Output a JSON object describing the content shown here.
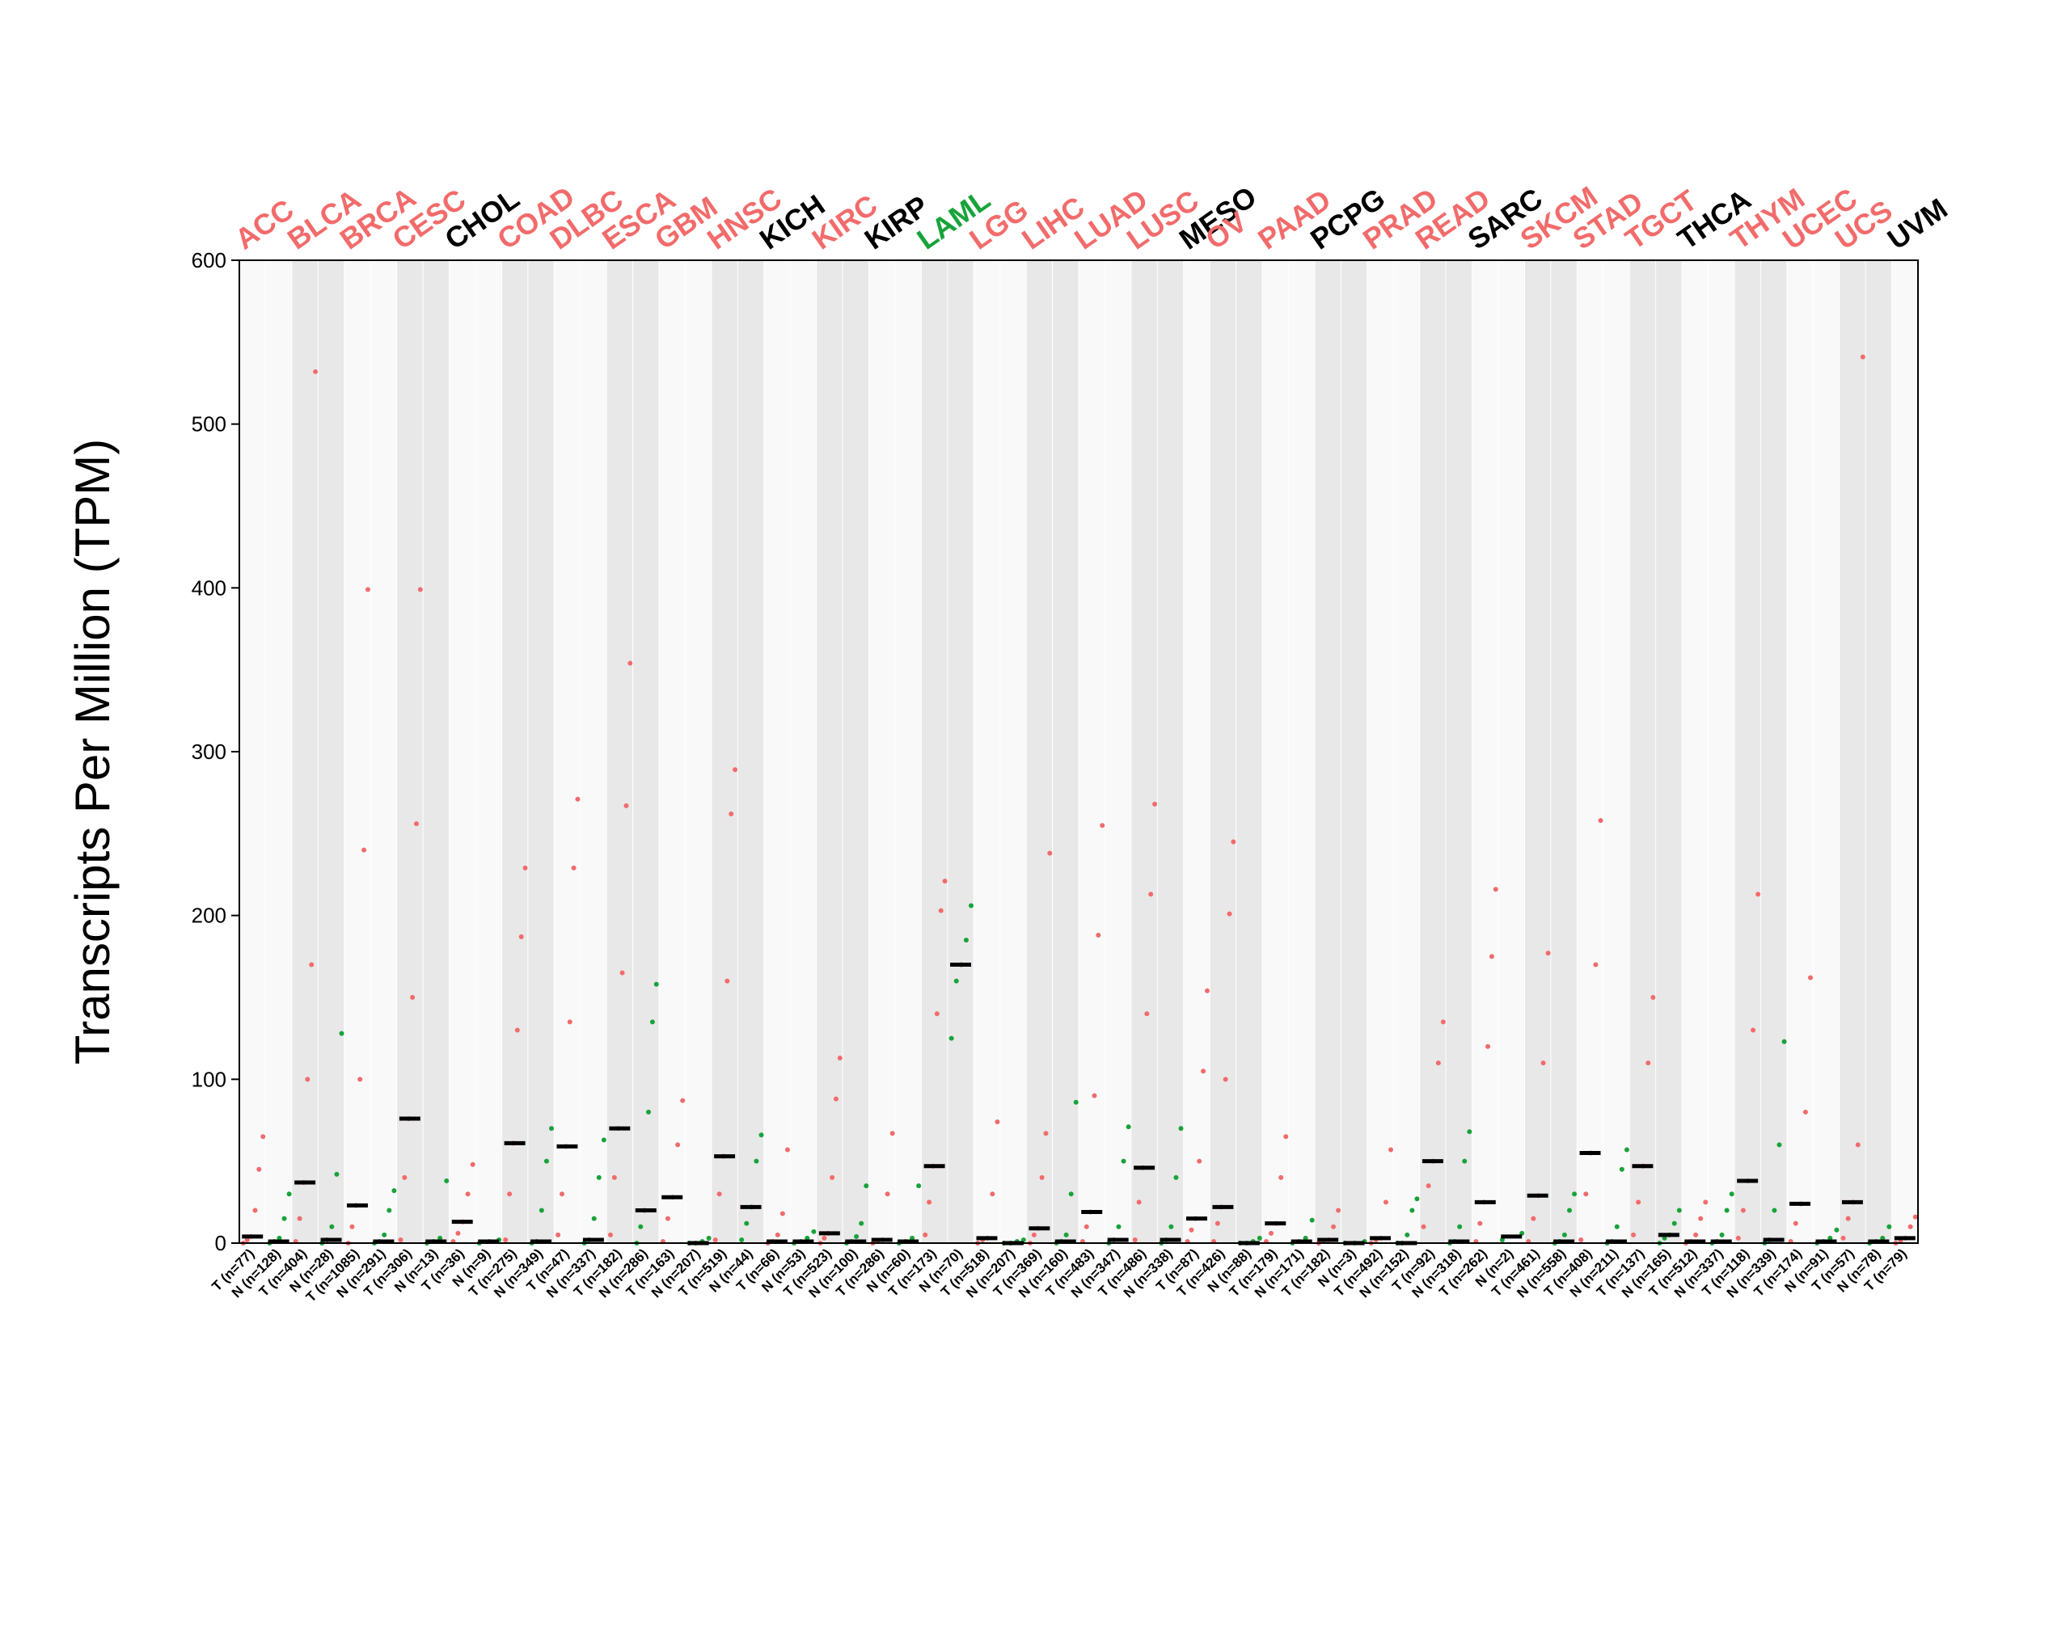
{
  "chart_data": {
    "type": "dot",
    "y_label": "Transcripts Per Million (TPM)",
    "ylim": [
      0,
      600
    ],
    "yticks": [
      0,
      100,
      200,
      300,
      400,
      500,
      600
    ],
    "median_color": "#000000",
    "cancers": [
      {
        "name": "ACC",
        "color": "#f26b6b",
        "groups": [
          {
            "label": "T (n=77)",
            "color": "#f26b6b",
            "median": 4,
            "values": [
              0,
              2,
              4,
              20,
              45,
              65
            ]
          },
          {
            "label": "N (n=128)",
            "color": "#18a33a",
            "median": 1,
            "values": [
              0,
              1,
              3,
              15,
              30
            ]
          }
        ]
      },
      {
        "name": "BLCA",
        "color": "#f26b6b",
        "groups": [
          {
            "label": "T (n=404)",
            "color": "#f26b6b",
            "median": 37,
            "values": [
              1,
              15,
              37,
              100,
              170,
              532
            ]
          },
          {
            "label": "N (n=28)",
            "color": "#18a33a",
            "median": 2,
            "values": [
              0,
              2,
              10,
              42,
              128
            ]
          }
        ]
      },
      {
        "name": "BRCA",
        "color": "#f26b6b",
        "groups": [
          {
            "label": "T (n=1085)",
            "color": "#f26b6b",
            "median": 23,
            "values": [
              0,
              10,
              23,
              100,
              240,
              399
            ]
          },
          {
            "label": "N (n=291)",
            "color": "#18a33a",
            "median": 1,
            "values": [
              0,
              1,
              5,
              20,
              32
            ]
          }
        ]
      },
      {
        "name": "CESC",
        "color": "#f26b6b",
        "groups": [
          {
            "label": "T (n=306)",
            "color": "#f26b6b",
            "median": 76,
            "values": [
              2,
              40,
              76,
              150,
              256,
              399
            ]
          },
          {
            "label": "N (n=13)",
            "color": "#18a33a",
            "median": 1,
            "values": [
              0,
              1,
              3,
              38
            ]
          }
        ]
      },
      {
        "name": "CHOL",
        "color": "#000000",
        "groups": [
          {
            "label": "T (n=36)",
            "color": "#f26b6b",
            "median": 13,
            "values": [
              1,
              6,
              13,
              30,
              48
            ]
          },
          {
            "label": "N (n=9)",
            "color": "#18a33a",
            "median": 1,
            "values": [
              0,
              1,
              2
            ]
          }
        ]
      },
      {
        "name": "COAD",
        "color": "#f26b6b",
        "groups": [
          {
            "label": "T (n=275)",
            "color": "#f26b6b",
            "median": 61,
            "values": [
              2,
              30,
              61,
              130,
              187,
              229
            ]
          },
          {
            "label": "N (n=349)",
            "color": "#18a33a",
            "median": 1,
            "values": [
              0,
              1,
              20,
              50,
              70
            ]
          }
        ]
      },
      {
        "name": "DLBC",
        "color": "#f26b6b",
        "groups": [
          {
            "label": "T (n=47)",
            "color": "#f26b6b",
            "median": 59,
            "values": [
              5,
              30,
              59,
              135,
              229,
              271
            ]
          },
          {
            "label": "N (n=337)",
            "color": "#18a33a",
            "median": 2,
            "values": [
              0,
              2,
              15,
              40,
              63
            ]
          }
        ]
      },
      {
        "name": "ESCA",
        "color": "#f26b6b",
        "groups": [
          {
            "label": "T (n=182)",
            "color": "#f26b6b",
            "median": 70,
            "values": [
              5,
              40,
              70,
              165,
              267,
              354
            ]
          },
          {
            "label": "N (n=286)",
            "color": "#18a33a",
            "median": 20,
            "values": [
              0,
              10,
              20,
              80,
              135,
              158
            ]
          }
        ]
      },
      {
        "name": "GBM",
        "color": "#f26b6b",
        "groups": [
          {
            "label": "T (n=163)",
            "color": "#f26b6b",
            "median": 28,
            "values": [
              1,
              15,
              28,
              60,
              87
            ]
          },
          {
            "label": "N (n=207)",
            "color": "#18a33a",
            "median": 0,
            "values": [
              0,
              0,
              1,
              3
            ]
          }
        ]
      },
      {
        "name": "HNSC",
        "color": "#f26b6b",
        "groups": [
          {
            "label": "T (n=519)",
            "color": "#f26b6b",
            "median": 53,
            "values": [
              2,
              30,
              53,
              160,
              262,
              289
            ]
          },
          {
            "label": "N (n=44)",
            "color": "#18a33a",
            "median": 22,
            "values": [
              2,
              12,
              22,
              50,
              66
            ]
          }
        ]
      },
      {
        "name": "KICH",
        "color": "#000000",
        "groups": [
          {
            "label": "T (n=66)",
            "color": "#f26b6b",
            "median": 1,
            "values": [
              0,
              1,
              5,
              18,
              57
            ]
          },
          {
            "label": "N (n=53)",
            "color": "#18a33a",
            "median": 1,
            "values": [
              0,
              1,
              3,
              7
            ]
          }
        ]
      },
      {
        "name": "KIRC",
        "color": "#f26b6b",
        "groups": [
          {
            "label": "T (n=523)",
            "color": "#f26b6b",
            "median": 6,
            "values": [
              0,
              3,
              6,
              40,
              88,
              113
            ]
          },
          {
            "label": "N (n=100)",
            "color": "#18a33a",
            "median": 1,
            "values": [
              0,
              1,
              4,
              12,
              35
            ]
          }
        ]
      },
      {
        "name": "KIRP",
        "color": "#000000",
        "groups": [
          {
            "label": "T (n=286)",
            "color": "#f26b6b",
            "median": 2,
            "values": [
              0,
              1,
              2,
              30,
              67
            ]
          },
          {
            "label": "N (n=60)",
            "color": "#18a33a",
            "median": 1,
            "values": [
              0,
              1,
              3,
              35
            ]
          }
        ]
      },
      {
        "name": "LAML",
        "color": "#18a33a",
        "groups": [
          {
            "label": "T (n=173)",
            "color": "#f26b6b",
            "median": 47,
            "values": [
              5,
              25,
              47,
              140,
              203,
              221
            ]
          },
          {
            "label": "N (n=70)",
            "color": "#18a33a",
            "median": 170,
            "values": [
              125,
              160,
              170,
              185,
              206
            ]
          }
        ]
      },
      {
        "name": "LGG",
        "color": "#f26b6b",
        "groups": [
          {
            "label": "T (n=518)",
            "color": "#f26b6b",
            "median": 3,
            "values": [
              0,
              2,
              3,
              30,
              74
            ]
          },
          {
            "label": "N (n=207)",
            "color": "#18a33a",
            "median": 0,
            "values": [
              0,
              0,
              1,
              2
            ]
          }
        ]
      },
      {
        "name": "LIHC",
        "color": "#f26b6b",
        "groups": [
          {
            "label": "T (n=369)",
            "color": "#f26b6b",
            "median": 9,
            "values": [
              0,
              5,
              9,
              40,
              67,
              238
            ]
          },
          {
            "label": "N (n=160)",
            "color": "#18a33a",
            "median": 1,
            "values": [
              0,
              1,
              5,
              30,
              86
            ]
          }
        ]
      },
      {
        "name": "LUAD",
        "color": "#f26b6b",
        "groups": [
          {
            "label": "T (n=483)",
            "color": "#f26b6b",
            "median": 19,
            "values": [
              1,
              10,
              19,
              90,
              188,
              255
            ]
          },
          {
            "label": "N (n=347)",
            "color": "#18a33a",
            "median": 2,
            "values": [
              0,
              2,
              10,
              50,
              71
            ]
          }
        ]
      },
      {
        "name": "LUSC",
        "color": "#f26b6b",
        "groups": [
          {
            "label": "T (n=486)",
            "color": "#f26b6b",
            "median": 46,
            "values": [
              2,
              25,
              46,
              140,
              213,
              268
            ]
          },
          {
            "label": "N (n=338)",
            "color": "#18a33a",
            "median": 2,
            "values": [
              0,
              2,
              10,
              40,
              70
            ]
          }
        ]
      },
      {
        "name": "MESO",
        "color": "#000000",
        "groups": [
          {
            "label": "T (n=87)",
            "color": "#f26b6b",
            "median": 15,
            "values": [
              1,
              8,
              15,
              50,
              105,
              154
            ]
          }
        ]
      },
      {
        "name": "OV",
        "color": "#f26b6b",
        "groups": [
          {
            "label": "T (n=426)",
            "color": "#f26b6b",
            "median": 22,
            "values": [
              1,
              12,
              22,
              100,
              201,
              245
            ]
          },
          {
            "label": "N (n=88)",
            "color": "#18a33a",
            "median": 0,
            "values": [
              0,
              0,
              1,
              3
            ]
          }
        ]
      },
      {
        "name": "PAAD",
        "color": "#f26b6b",
        "groups": [
          {
            "label": "T (n=179)",
            "color": "#f26b6b",
            "median": 12,
            "values": [
              1,
              6,
              12,
              40,
              65
            ]
          },
          {
            "label": "N (n=171)",
            "color": "#18a33a",
            "median": 1,
            "values": [
              0,
              1,
              3,
              14
            ]
          }
        ]
      },
      {
        "name": "PCPG",
        "color": "#000000",
        "groups": [
          {
            "label": "T (n=182)",
            "color": "#f26b6b",
            "median": 2,
            "values": [
              0,
              1,
              2,
              10,
              20
            ]
          },
          {
            "label": "N (n=3)",
            "color": "#18a33a",
            "median": 0,
            "values": [
              0,
              0,
              1
            ]
          }
        ]
      },
      {
        "name": "PRAD",
        "color": "#f26b6b",
        "groups": [
          {
            "label": "T (n=492)",
            "color": "#f26b6b",
            "median": 3,
            "values": [
              0,
              2,
              3,
              25,
              57
            ]
          },
          {
            "label": "N (n=152)",
            "color": "#18a33a",
            "median": 0,
            "values": [
              0,
              0,
              5,
              20,
              27
            ]
          }
        ]
      },
      {
        "name": "READ",
        "color": "#f26b6b",
        "groups": [
          {
            "label": "T (n=92)",
            "color": "#f26b6b",
            "median": 50,
            "values": [
              10,
              35,
              50,
              110,
              135
            ]
          },
          {
            "label": "N (n=318)",
            "color": "#18a33a",
            "median": 1,
            "values": [
              0,
              1,
              10,
              50,
              68
            ]
          }
        ]
      },
      {
        "name": "SARC",
        "color": "#000000",
        "groups": [
          {
            "label": "T (n=262)",
            "color": "#f26b6b",
            "median": 25,
            "values": [
              1,
              12,
              25,
              120,
              175,
              216
            ]
          },
          {
            "label": "N (n=2)",
            "color": "#18a33a",
            "median": 4,
            "values": [
              2,
              6
            ]
          }
        ]
      },
      {
        "name": "SKCM",
        "color": "#f26b6b",
        "groups": [
          {
            "label": "T (n=461)",
            "color": "#f26b6b",
            "median": 29,
            "values": [
              1,
              15,
              29,
              110,
              177
            ]
          },
          {
            "label": "N (n=558)",
            "color": "#18a33a",
            "median": 1,
            "values": [
              0,
              1,
              5,
              20,
              30
            ]
          }
        ]
      },
      {
        "name": "STAD",
        "color": "#f26b6b",
        "groups": [
          {
            "label": "T (n=408)",
            "color": "#f26b6b",
            "median": 55,
            "values": [
              2,
              30,
              55,
              170,
              258
            ]
          },
          {
            "label": "N (n=211)",
            "color": "#18a33a",
            "median": 1,
            "values": [
              0,
              1,
              10,
              45,
              57
            ]
          }
        ]
      },
      {
        "name": "TGCT",
        "color": "#f26b6b",
        "groups": [
          {
            "label": "T (n=137)",
            "color": "#f26b6b",
            "median": 47,
            "values": [
              5,
              25,
              47,
              110,
              150
            ]
          },
          {
            "label": "N (n=165)",
            "color": "#18a33a",
            "median": 5,
            "values": [
              0,
              3,
              5,
              12,
              20
            ]
          }
        ]
      },
      {
        "name": "THCA",
        "color": "#000000",
        "groups": [
          {
            "label": "T (n=512)",
            "color": "#f26b6b",
            "median": 1,
            "values": [
              0,
              1,
              5,
              15,
              25
            ]
          },
          {
            "label": "N (n=337)",
            "color": "#18a33a",
            "median": 1,
            "values": [
              0,
              1,
              5,
              20,
              30
            ]
          }
        ]
      },
      {
        "name": "THYM",
        "color": "#f26b6b",
        "groups": [
          {
            "label": "T (n=118)",
            "color": "#f26b6b",
            "median": 38,
            "values": [
              3,
              20,
              38,
              130,
              213
            ]
          },
          {
            "label": "N (n=339)",
            "color": "#18a33a",
            "median": 2,
            "values": [
              0,
              2,
              20,
              60,
              123
            ]
          }
        ]
      },
      {
        "name": "UCEC",
        "color": "#f26b6b",
        "groups": [
          {
            "label": "T (n=174)",
            "color": "#f26b6b",
            "median": 24,
            "values": [
              1,
              12,
              24,
              80,
              162
            ]
          },
          {
            "label": "N (n=91)",
            "color": "#18a33a",
            "median": 1,
            "values": [
              0,
              1,
              3,
              8
            ]
          }
        ]
      },
      {
        "name": "UCS",
        "color": "#f26b6b",
        "groups": [
          {
            "label": "T (n=57)",
            "color": "#f26b6b",
            "median": 25,
            "values": [
              3,
              15,
              25,
              60,
              541
            ]
          },
          {
            "label": "N (n=78)",
            "color": "#18a33a",
            "median": 1,
            "values": [
              0,
              1,
              3,
              10
            ]
          }
        ]
      },
      {
        "name": "UVM",
        "color": "#000000",
        "groups": [
          {
            "label": "T (n=79)",
            "color": "#f26b6b",
            "median": 3,
            "values": [
              0,
              1,
              3,
              10,
              16
            ]
          }
        ]
      }
    ]
  }
}
